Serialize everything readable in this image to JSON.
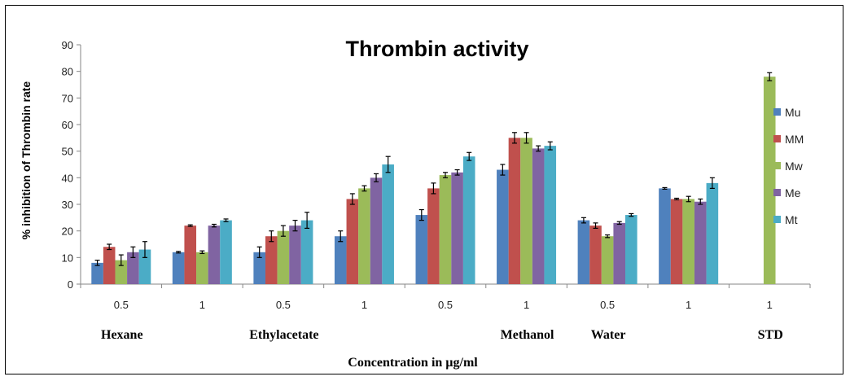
{
  "chart_data": {
    "type": "bar",
    "title": "Thrombin activity",
    "ylabel": "% inhibition of Thrombin rate",
    "xlabel": "Concentration in µg/ml",
    "ylim": [
      0,
      90
    ],
    "ytick_step": 10,
    "legend_position": "right",
    "categories": [
      {
        "conc": "0.5",
        "group": "Hexane"
      },
      {
        "conc": "1",
        "group": ""
      },
      {
        "conc": "0.5",
        "group": "Ethylacetate"
      },
      {
        "conc": "1",
        "group": ""
      },
      {
        "conc": "0.5",
        "group": ""
      },
      {
        "conc": "1",
        "group": "Methanol"
      },
      {
        "conc": "0.5",
        "group": "Water"
      },
      {
        "conc": "1",
        "group": ""
      },
      {
        "conc": "1",
        "group": "STD"
      }
    ],
    "series": [
      {
        "name": "Mu",
        "color": "#4F81BD",
        "values": [
          8,
          12,
          12,
          18,
          26,
          43,
          24,
          36,
          null
        ],
        "errors": [
          1,
          0.3,
          2,
          2,
          2,
          2,
          1,
          0.3,
          null
        ]
      },
      {
        "name": "MM",
        "color": "#C0504D",
        "values": [
          14,
          22,
          18,
          32,
          36,
          55,
          22,
          32,
          null
        ],
        "errors": [
          1,
          0.3,
          2,
          2,
          2,
          2,
          1,
          0.3,
          null
        ]
      },
      {
        "name": "Mw",
        "color": "#9BBB59",
        "values": [
          9,
          12,
          20,
          36,
          41,
          55,
          18,
          32,
          78
        ],
        "errors": [
          2,
          0.5,
          2,
          1,
          1,
          2,
          0.5,
          1,
          1.5
        ]
      },
      {
        "name": "Me",
        "color": "#8064A2",
        "values": [
          12,
          22,
          22,
          40,
          42,
          51,
          23,
          31,
          null
        ],
        "errors": [
          2,
          0.5,
          2,
          1.5,
          1,
          1,
          0.5,
          1,
          null
        ]
      },
      {
        "name": "Mt",
        "color": "#4BACC6",
        "values": [
          13,
          24,
          24,
          45,
          48,
          52,
          26,
          38,
          null
        ],
        "errors": [
          3,
          0.5,
          3,
          3,
          1.5,
          1.5,
          0.5,
          2,
          null
        ]
      }
    ]
  }
}
